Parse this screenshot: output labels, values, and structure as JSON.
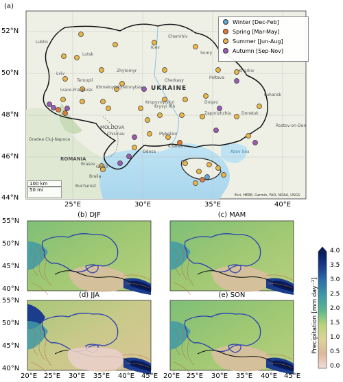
{
  "figure_label": "(a)",
  "top_map": {
    "lat_ticks": [
      "52°N",
      "50°N",
      "48°N",
      "46°N",
      "44°N"
    ],
    "lon_ticks": [
      "25°E",
      "30°E",
      "35°E",
      "40°E"
    ],
    "country_label": "UKRAINE",
    "place_labels": [
      "Kiev",
      "Lutsk",
      "Lviv",
      "Ternopil",
      "Ivano-Frankivsk",
      "Khmelnytskyi",
      "Vinnytsia",
      "Zhytomyr",
      "Chernihiv",
      "Sumy",
      "Kharkiv",
      "Poltava",
      "Cherkasy",
      "Kropyvnytskyi",
      "Dnipro",
      "Zaporizhzhia",
      "Luhansk",
      "Donetsk",
      "Mykolaiv",
      "Kherson",
      "Odesa",
      "Chisinau",
      "MOLDOVA",
      "ROMANIA",
      "Cluj-Napoca",
      "Oradea",
      "Bucharest",
      "Galati",
      "Braila",
      "Brasov",
      "Azov Sea",
      "Rostov-on-Don",
      "Lublin",
      "Kryvyi Rih"
    ],
    "legend": [
      {
        "label": "Winter [Dec-Feb]",
        "color": "#5fa8d3"
      },
      {
        "label": "Spring [Mar-May]",
        "color": "#e07a3a"
      },
      {
        "label": "Summer [Jun-Aug]",
        "color": "#e8b548"
      },
      {
        "label": "Autumn [Sep-Nov]",
        "color": "#9a5bb0"
      }
    ],
    "scale_km": "100 km",
    "scale_mi": "50 mi",
    "credit": "Esri, HERE, Garmin, FAO, NOAA, USGS"
  },
  "panels": [
    {
      "title": "(b) DJF"
    },
    {
      "title": "(c) MAM"
    },
    {
      "title": "(d) JJA"
    },
    {
      "title": "(e) SON"
    }
  ],
  "small_lat_ticks": [
    "55°N",
    "50°N",
    "45°N",
    "40°N"
  ],
  "small_lon_ticks": [
    "20°E",
    "25°E",
    "30°E",
    "35°E",
    "40°E",
    "45°E"
  ],
  "colorbar": {
    "label": "Precipitation [mm day⁻¹]",
    "ticks": [
      "4.0",
      "3.5",
      "3.0",
      "2.5",
      "2.0",
      "1.5",
      "1.0",
      "0.5",
      "0.0"
    ],
    "colors": [
      "#061a5c",
      "#1b3d8c",
      "#2f6fa8",
      "#3f9aa8",
      "#5bb58f",
      "#88c77a",
      "#b9d47a",
      "#ddd39a",
      "#dcb89a",
      "#f0dede"
    ]
  }
}
